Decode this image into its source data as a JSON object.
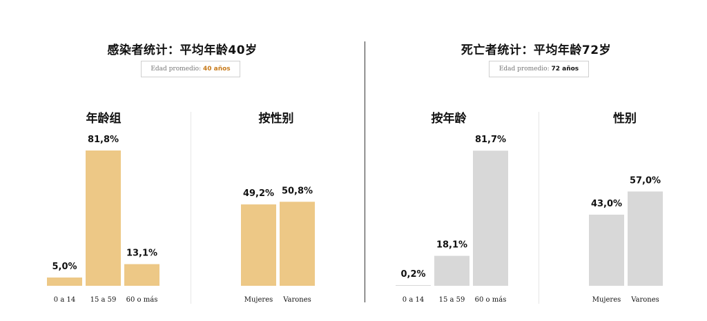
{
  "left": {
    "title": "感染者统计：平均年龄40岁",
    "avg_label": "Edad promedio: ",
    "avg_value": "40 años",
    "avg_color": "#c77a1a",
    "bar_color": "#edc886"
  },
  "right": {
    "title": "死亡者统计：平均年龄72岁",
    "avg_label": "Edad promedio: ",
    "avg_value": "72 años",
    "avg_color": "#111111",
    "bar_color": "#d8d8d8"
  },
  "chart_data": [
    {
      "type": "bar",
      "title": "年龄组",
      "categories": [
        "0 a 14",
        "15 a 59",
        "60 o más"
      ],
      "values": [
        5.0,
        81.8,
        13.1
      ],
      "value_labels": [
        "5,0%",
        "81,8%",
        "13,1%"
      ],
      "ylim": [
        0,
        100
      ]
    },
    {
      "type": "bar",
      "title": "按性别",
      "categories": [
        "Mujeres",
        "Varones"
      ],
      "values": [
        49.2,
        50.8
      ],
      "value_labels": [
        "49,2%",
        "50,8%"
      ],
      "ylim": [
        0,
        100
      ]
    },
    {
      "type": "bar",
      "title": "按年龄",
      "categories": [
        "0 a 14",
        "15 a 59",
        "60 o más"
      ],
      "values": [
        0.2,
        18.1,
        81.7
      ],
      "value_labels": [
        "0,2%",
        "18,1%",
        "81,7%"
      ],
      "ylim": [
        0,
        100
      ]
    },
    {
      "type": "bar",
      "title": "性别",
      "categories": [
        "Mujeres",
        "Varones"
      ],
      "values": [
        43.0,
        57.0
      ],
      "value_labels": [
        "43,0%",
        "57,0%"
      ],
      "ylim": [
        0,
        100
      ]
    }
  ]
}
